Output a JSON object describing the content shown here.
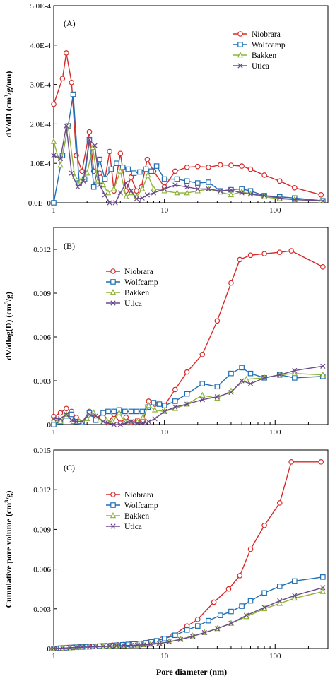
{
  "x_axis_label": "Pore diameter (nm)",
  "series_styles": [
    {
      "name": "Niobrara",
      "color": "#d62a2a",
      "marker": "circle"
    },
    {
      "name": "Wolfcamp",
      "color": "#1f6fb5",
      "marker": "square"
    },
    {
      "name": "Bakken",
      "color": "#8fb339",
      "marker": "triangle"
    },
    {
      "name": "Utica",
      "color": "#6b4a8a",
      "marker": "x"
    }
  ],
  "chart_data": [
    {
      "type": "line",
      "panel": "(A)",
      "ylabel": "dV/dD (cm3/g/nm)",
      "xscale": "log",
      "xlim": [
        1,
        300
      ],
      "ylim": [
        0,
        0.0005
      ],
      "x_ticks": [
        "1",
        "10",
        "100"
      ],
      "y_ticks": [
        "0.0E+0",
        "1.0E-4",
        "2.0E-4",
        "3.0E-4",
        "4.0E-4",
        "5.0E-4"
      ],
      "y_tick_values": [
        0,
        0.0001,
        0.0002,
        0.0003,
        0.0004,
        0.0005
      ],
      "legend_position": "top-right",
      "series": [
        {
          "name": "Niobrara",
          "x": [
            1,
            1.2,
            1.3,
            1.45,
            1.6,
            1.8,
            2.1,
            2.3,
            2.6,
            2.9,
            3.2,
            3.5,
            4.0,
            4.5,
            5.0,
            5.6,
            6.2,
            7.0,
            8.0,
            10,
            12.5,
            16,
            20,
            25,
            32,
            40,
            50,
            60,
            80,
            110,
            150,
            260
          ],
          "y": [
            0.00025,
            0.000315,
            0.00038,
            0.000305,
            0.00012,
            8e-05,
            0.00018,
            8e-05,
            7.5e-05,
            6e-05,
            0.00013,
            3e-05,
            0.000125,
            3e-05,
            6.5e-05,
            3e-05,
            4e-05,
            0.00011,
            8e-05,
            4e-05,
            8e-05,
            9e-05,
            9.2e-05,
            9e-05,
            9.6e-05,
            9.5e-05,
            9.3e-05,
            8.5e-05,
            7e-05,
            5.5e-05,
            3.8e-05,
            2e-05
          ]
        },
        {
          "name": "Wolfcamp",
          "x": [
            1,
            1.2,
            1.35,
            1.5,
            1.7,
            1.9,
            2.1,
            2.3,
            2.6,
            2.9,
            3.3,
            3.7,
            4.2,
            4.7,
            5.3,
            6.0,
            6.8,
            7.6,
            8.5,
            10,
            13,
            16,
            20,
            25,
            32,
            40,
            50,
            60,
            80,
            110,
            150,
            270
          ],
          "y": [
            0,
            0.00012,
            0.000195,
            0.000275,
            5e-05,
            6e-05,
            0.00016,
            4e-05,
            0.00011,
            6e-05,
            8.5e-05,
            0.0001,
            9e-05,
            8.5e-05,
            7.5e-05,
            7.8e-05,
            8.5e-05,
            8e-05,
            9.3e-05,
            6e-05,
            6e-05,
            5.5e-05,
            5e-05,
            5.2e-05,
            3e-05,
            3.3e-05,
            3.5e-05,
            3e-05,
            1.8e-05,
            1.5e-05,
            1.2e-05,
            5e-06
          ]
        },
        {
          "name": "Bakken",
          "x": [
            1,
            1.15,
            1.35,
            1.55,
            1.75,
            2.0,
            2.25,
            2.5,
            2.8,
            3.1,
            3.5,
            4.0,
            4.5,
            5.0,
            5.6,
            6.3,
            7.1,
            8.0,
            10,
            13,
            16,
            20,
            25,
            32,
            40,
            50,
            60,
            80,
            110,
            150,
            260
          ],
          "y": [
            0.000155,
            9.5e-05,
            0.000195,
            6.5e-05,
            5.5e-05,
            7.5e-05,
            0.00014,
            5.5e-05,
            4.5e-05,
            2.5e-05,
            3.5e-05,
            8e-05,
            1.5e-05,
            2.5e-05,
            1.5e-05,
            3.5e-05,
            7e-05,
            3.5e-05,
            3e-05,
            2.5e-05,
            2.5e-05,
            3e-05,
            3.5e-05,
            2.7e-05,
            2e-05,
            2.8e-05,
            2.2e-05,
            1.5e-05,
            1e-05,
            8e-06,
            5e-06
          ]
        },
        {
          "name": "Utica",
          "x": [
            1,
            1.15,
            1.3,
            1.45,
            1.65,
            1.85,
            2.1,
            2.35,
            2.6,
            2.9,
            3.2,
            3.6,
            4.0,
            4.5,
            5.0,
            5.6,
            6.3,
            7.0,
            8.0,
            10,
            12.5,
            16,
            20,
            25,
            32,
            40,
            50,
            60,
            80,
            110,
            150,
            270
          ],
          "y": [
            0.00012,
            0.000112,
            0.000195,
            7.5e-05,
            4e-05,
            5.5e-05,
            0.00016,
            0.000145,
            4.5e-05,
            2e-05,
            0,
            0,
            2.5e-05,
            5e-05,
            3e-05,
            1e-05,
            1.2e-05,
            2e-05,
            2.5e-05,
            3.5e-05,
            4.5e-05,
            4e-05,
            3.5e-05,
            3.5e-05,
            3e-05,
            3.2e-05,
            2.5e-05,
            2.2e-05,
            1.8e-05,
            1.2e-05,
            8e-06,
            5e-06
          ]
        }
      ]
    },
    {
      "type": "line",
      "panel": "(B)",
      "ylabel": "dV/dlog(D) (cm3/g)",
      "xscale": "log",
      "xlim": [
        1,
        300
      ],
      "ylim": [
        0,
        0.0135
      ],
      "x_ticks": [
        "1",
        "10",
        "100"
      ],
      "y_ticks": [
        "0",
        "0.003",
        "0.006",
        "0.009",
        "0.012"
      ],
      "y_tick_values": [
        0,
        0.003,
        0.006,
        0.009,
        0.012
      ],
      "legend_position": "top-left",
      "series": [
        {
          "name": "Niobrara",
          "x": [
            1,
            1.15,
            1.3,
            1.45,
            1.6,
            1.8,
            2.1,
            2.4,
            2.8,
            3.1,
            3.5,
            4.0,
            4.5,
            5.0,
            5.7,
            6.4,
            7.2,
            8.2,
            10,
            12.5,
            16,
            22,
            30,
            40,
            48,
            60,
            80,
            110,
            140,
            270
          ],
          "y": [
            0.00055,
            0.0008,
            0.0011,
            0.0009,
            0.0005,
            0.00015,
            0.0009,
            0.0004,
            0.0008,
            0.00015,
            0.0007,
            0.0001,
            0.0005,
            0.00015,
            0.0003,
            0.0002,
            0.0016,
            0.0014,
            0.0013,
            0.0024,
            0.0036,
            0.0048,
            0.0071,
            0.0097,
            0.0113,
            0.0116,
            0.0117,
            0.0118,
            0.0119,
            0.0108
          ]
        },
        {
          "name": "Wolfcamp",
          "x": [
            1,
            1.15,
            1.3,
            1.45,
            1.6,
            1.8,
            2.1,
            2.4,
            2.8,
            3.1,
            3.5,
            3.9,
            4.4,
            5.0,
            5.6,
            6.3,
            7.1,
            8.0,
            9.0,
            10,
            12.5,
            16,
            22,
            30,
            40,
            50,
            60,
            80,
            110,
            150,
            270
          ],
          "y": [
            0,
            0.0002,
            0.0006,
            0.0007,
            0.0002,
            0.00015,
            0.0008,
            0.0003,
            0.0008,
            0.0009,
            0.0009,
            0.001,
            0.0009,
            0.0009,
            0.0009,
            0.0009,
            0.0012,
            0.0015,
            0.0014,
            0.0013,
            0.0016,
            0.0021,
            0.0028,
            0.0026,
            0.0035,
            0.0039,
            0.0035,
            0.0032,
            0.0034,
            0.0032,
            0.0033
          ]
        },
        {
          "name": "Bakken",
          "x": [
            1,
            1.15,
            1.3,
            1.5,
            1.7,
            2.0,
            2.3,
            2.6,
            3.0,
            3.4,
            3.9,
            4.4,
            5.0,
            5.7,
            6.4,
            7.2,
            8.2,
            10,
            12.5,
            16,
            22,
            30,
            40,
            55,
            80,
            110,
            150,
            270
          ],
          "y": [
            0.0003,
            0.0002,
            0.0007,
            0.0002,
            0.0002,
            0.0004,
            0.0008,
            0.0003,
            0.0003,
            0.0002,
            0.0008,
            0.0002,
            0.0002,
            0.0002,
            0.0005,
            0.0013,
            0.001,
            0.0009,
            0.0011,
            0.0014,
            0.002,
            0.0018,
            0.0023,
            0.0031,
            0.0032,
            0.0034,
            0.0035,
            0.0034
          ]
        },
        {
          "name": "Utica",
          "x": [
            1,
            1.15,
            1.3,
            1.45,
            1.6,
            1.8,
            2.1,
            2.4,
            2.8,
            3.1,
            3.5,
            4.0,
            4.5,
            5.0,
            5.7,
            6.4,
            7.2,
            8.2,
            10,
            12.5,
            16,
            22,
            30,
            40,
            50,
            60,
            80,
            110,
            150,
            270
          ],
          "y": [
            0.0004,
            0.0004,
            0.0007,
            0.0003,
            0.0002,
            0.0002,
            0.0007,
            0.0006,
            0.0002,
            0.0001,
            0,
            0,
            0.0001,
            0.0002,
            0.0001,
            0.0001,
            0.0002,
            0.0004,
            0.0009,
            0.0012,
            0.0014,
            0.0017,
            0.0019,
            0.0022,
            0.003,
            0.0028,
            0.0032,
            0.0034,
            0.0037,
            0.004
          ]
        }
      ]
    },
    {
      "type": "line",
      "panel": "(C)",
      "ylabel": "Cumulative pore volume (cm3/g)",
      "xscale": "log",
      "xlim": [
        1,
        300
      ],
      "ylim": [
        0,
        0.015
      ],
      "x_ticks": [
        "1",
        "10",
        "100"
      ],
      "y_ticks": [
        "0",
        "0.003",
        "0.006",
        "0.009",
        "0.012",
        "0.015"
      ],
      "y_tick_values": [
        0,
        0.003,
        0.006,
        0.009,
        0.012,
        0.015
      ],
      "legend_position": "top-left",
      "series": [
        {
          "name": "Niobrara",
          "x": [
            1,
            1.1,
            1.2,
            1.35,
            1.5,
            1.7,
            1.9,
            2.1,
            2.4,
            2.7,
            3.0,
            3.4,
            3.8,
            4.3,
            4.9,
            5.5,
            6.2,
            7.0,
            8.0,
            9.5,
            12,
            16,
            20,
            28,
            38,
            48,
            60,
            80,
            110,
            140,
            260
          ],
          "y": [
            0,
            2e-05,
            5e-05,
            8e-05,
            0.0001,
            0.00012,
            0.00014,
            0.00016,
            0.00018,
            0.0002,
            0.00022,
            0.00025,
            0.00028,
            0.0003,
            0.00033,
            0.00036,
            0.0004,
            0.00045,
            0.00055,
            0.0007,
            0.001,
            0.0017,
            0.0022,
            0.0035,
            0.0045,
            0.0055,
            0.0075,
            0.0093,
            0.011,
            0.0141,
            0.0141
          ]
        },
        {
          "name": "Wolfcamp",
          "x": [
            1,
            1.15,
            1.3,
            1.45,
            1.6,
            1.8,
            2.0,
            2.3,
            2.6,
            2.9,
            3.3,
            3.7,
            4.2,
            4.7,
            5.3,
            6.0,
            6.8,
            7.6,
            8.5,
            10,
            12.5,
            16,
            20,
            25,
            32,
            40,
            50,
            60,
            80,
            110,
            150,
            270
          ],
          "y": [
            0,
            3e-05,
            5e-05,
            8e-05,
            0.0001,
            0.00012,
            0.00014,
            0.00016,
            0.00018,
            0.0002,
            0.00022,
            0.00025,
            0.00028,
            0.00031,
            0.00034,
            0.00038,
            0.00043,
            0.0005,
            0.00058,
            0.00075,
            0.001,
            0.0014,
            0.0017,
            0.0021,
            0.0025,
            0.0028,
            0.0032,
            0.0036,
            0.0042,
            0.0047,
            0.0051,
            0.0054
          ]
        },
        {
          "name": "Bakken",
          "x": [
            1,
            1.2,
            1.4,
            1.6,
            1.8,
            2.1,
            2.4,
            2.8,
            3.2,
            3.7,
            4.3,
            5.0,
            5.7,
            6.5,
            7.5,
            9.0,
            11,
            14,
            18,
            23,
            30,
            40,
            55,
            80,
            110,
            150,
            270
          ],
          "y": [
            0,
            2e-05,
            4e-05,
            6e-05,
            8e-05,
            0.0001,
            0.00012,
            0.00014,
            0.00016,
            0.00018,
            0.0002,
            0.00022,
            0.00025,
            0.00028,
            0.00032,
            0.0004,
            0.00052,
            0.0007,
            0.00095,
            0.0012,
            0.0015,
            0.0019,
            0.0024,
            0.003,
            0.0034,
            0.0038,
            0.0043
          ]
        },
        {
          "name": "Utica",
          "x": [
            1,
            1.2,
            1.4,
            1.6,
            1.8,
            2.1,
            2.4,
            2.8,
            3.2,
            3.7,
            4.3,
            5.0,
            5.7,
            6.5,
            7.5,
            9.0,
            11,
            14,
            18,
            23,
            30,
            40,
            55,
            80,
            110,
            150,
            270
          ],
          "y": [
            0,
            3e-05,
            6e-05,
            8e-05,
            0.0001,
            0.00012,
            0.00014,
            0.00016,
            0.00018,
            0.0002,
            0.00022,
            0.00024,
            0.00026,
            0.00028,
            0.00031,
            0.00038,
            0.0005,
            0.00068,
            0.00092,
            0.0012,
            0.0015,
            0.0019,
            0.0025,
            0.0031,
            0.0036,
            0.004,
            0.0046
          ]
        }
      ]
    }
  ]
}
